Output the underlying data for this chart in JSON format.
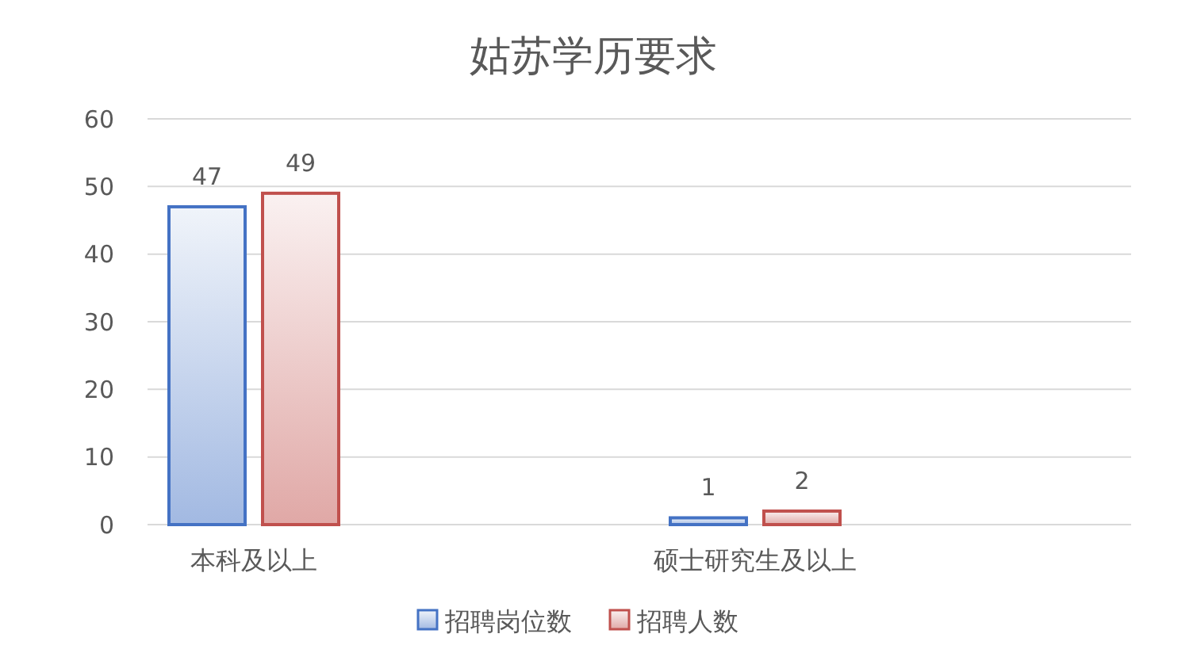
{
  "chart_data": {
    "type": "bar",
    "title": "姑苏学历要求",
    "categories": [
      "本科及以上",
      "硕士研究生及以上"
    ],
    "series": [
      {
        "name": "招聘岗位数",
        "color": "#4472c4",
        "values": [
          47,
          1
        ]
      },
      {
        "name": "招聘人数",
        "color": "#c0504d",
        "values": [
          49,
          2
        ]
      }
    ],
    "ylim": [
      0,
      60
    ],
    "yticks": [
      0,
      10,
      20,
      30,
      40,
      50,
      60
    ],
    "grid": "y",
    "legend": "bottom",
    "data_labels": true
  }
}
